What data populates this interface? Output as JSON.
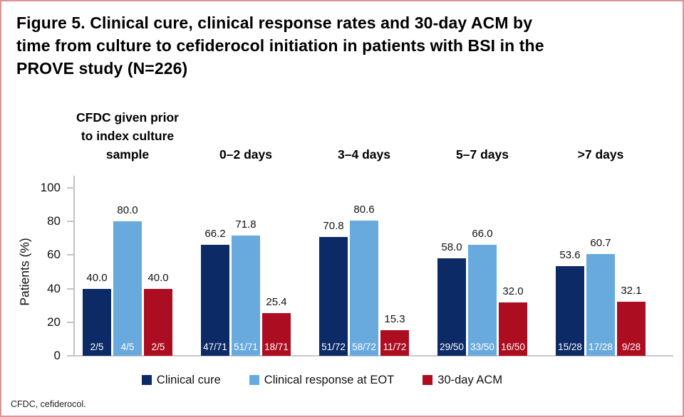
{
  "figure": {
    "footnote": "CFDC, cefiderocol."
  },
  "colors": {
    "clinical_cure": "#0c2a66",
    "clinical_response_eot": "#68aadd",
    "acm_30day": "#ad0d21",
    "axis": "#c3c3c3",
    "frame_border": "#dc9494"
  },
  "chart_data": {
    "type": "bar",
    "title": "Figure 5. Clinical cure, clinical response rates and 30-day ACM by\ntime from culture to cefiderocol initiation in patients with BSI in the\nPROVE study (N=226)",
    "ylabel": "Patients (%)",
    "xlabel": "",
    "ylim": [
      0,
      100
    ],
    "yticks": [
      0,
      20,
      40,
      60,
      80,
      100
    ],
    "grid": false,
    "legend_position": "bottom",
    "value_labels": "one decimal above each bar; n/N fraction in white at bar base",
    "categories": [
      "CFDC given prior\nto index culture\nsample",
      "0–2 days",
      "3–4 days",
      "5–7 days",
      ">7 days"
    ],
    "series": [
      {
        "name": "Clinical cure",
        "color": "#0c2a66",
        "values": [
          40.0,
          66.2,
          70.8,
          58.0,
          53.6
        ],
        "fractions": [
          "2/5",
          "47/71",
          "51/72",
          "29/50",
          "15/28"
        ]
      },
      {
        "name": "Clinical response at EOT",
        "color": "#68aadd",
        "values": [
          80.0,
          71.8,
          80.6,
          66.0,
          60.7
        ],
        "fractions": [
          "4/5",
          "51/71",
          "58/72",
          "33/50",
          "17/28"
        ]
      },
      {
        "name": "30-day ACM",
        "color": "#ad0d21",
        "values": [
          40.0,
          25.4,
          15.3,
          32.0,
          32.1
        ],
        "fractions": [
          "2/5",
          "18/71",
          "11/72",
          "16/50",
          "9/28"
        ]
      }
    ]
  }
}
